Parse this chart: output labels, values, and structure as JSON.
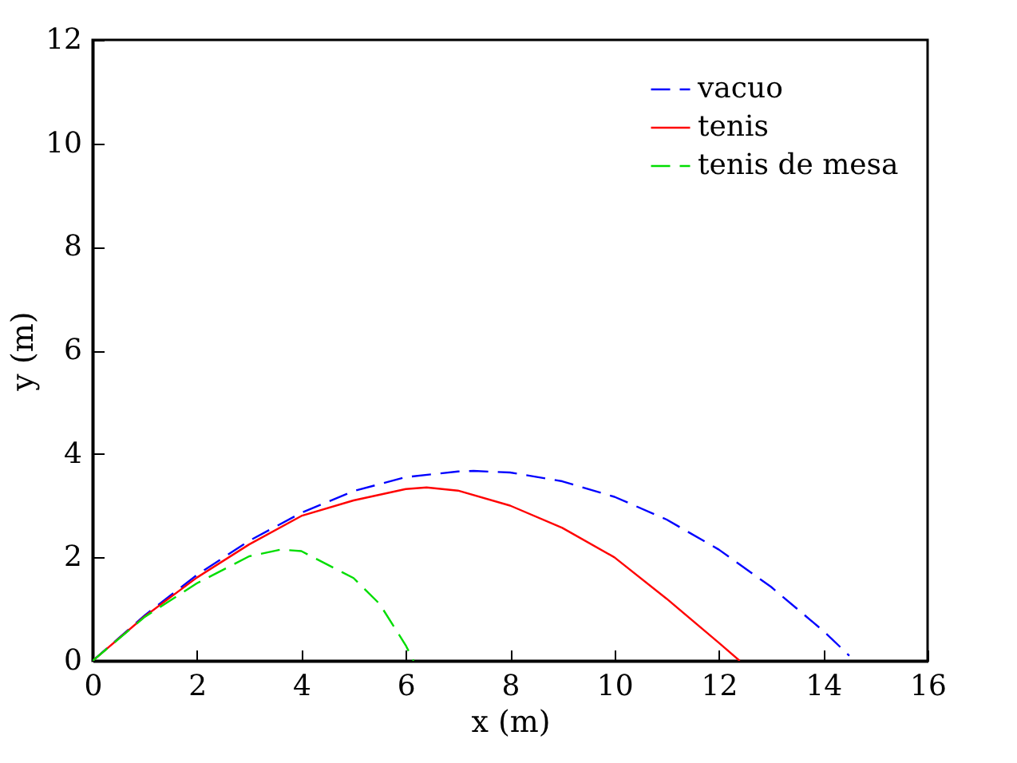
{
  "chart_data": {
    "type": "line",
    "xlabel": "x (m)",
    "ylabel": "y (m)",
    "xlim": [
      0,
      16
    ],
    "ylim": [
      0,
      12
    ],
    "xticks": [
      0,
      2,
      4,
      6,
      8,
      10,
      12,
      14,
      16
    ],
    "yticks": [
      0,
      2,
      4,
      6,
      8,
      10,
      12
    ],
    "grid": false,
    "legend": "top right",
    "marker": "none",
    "series": [
      {
        "name": "vacuo",
        "color": "#0000ff",
        "line_style": "dashed",
        "x": [
          0,
          1,
          2,
          3,
          4,
          5,
          6,
          7,
          7.3,
          8,
          9,
          10,
          11,
          12,
          13,
          14,
          14.5
        ],
        "values": [
          0,
          0.88,
          1.66,
          2.32,
          2.86,
          3.28,
          3.55,
          3.66,
          3.67,
          3.64,
          3.47,
          3.17,
          2.73,
          2.15,
          1.43,
          0.58,
          0.1
        ]
      },
      {
        "name": "tenis",
        "color": "#ff0000",
        "line_style": "solid",
        "x": [
          0,
          1,
          2,
          3,
          4,
          5,
          6,
          6.4,
          7,
          8,
          9,
          10,
          11,
          12,
          12.4
        ],
        "values": [
          0,
          0.86,
          1.61,
          2.25,
          2.8,
          3.1,
          3.32,
          3.35,
          3.29,
          3.0,
          2.57,
          2.0,
          1.2,
          0.35,
          0
        ]
      },
      {
        "name": "tenis de mesa",
        "color": "#00dd00",
        "line_style": "dashed",
        "x": [
          0,
          1,
          2,
          3,
          3.6,
          4,
          5,
          5.5,
          6,
          6.15
        ],
        "values": [
          0,
          0.85,
          1.5,
          2.02,
          2.15,
          2.12,
          1.6,
          1.1,
          0.3,
          0
        ]
      }
    ]
  }
}
